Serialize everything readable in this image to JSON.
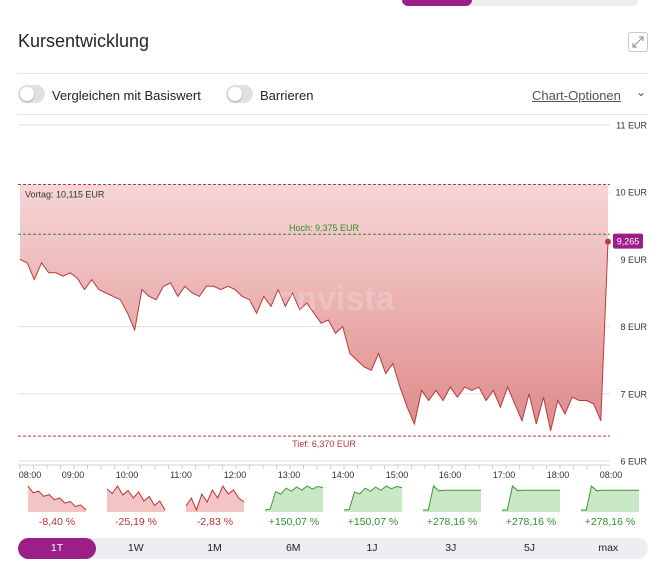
{
  "title": "Kursentwicklung",
  "toggles": [
    {
      "label": "Vergleichen mit Basiswert"
    },
    {
      "label": "Barrieren"
    }
  ],
  "chart_options_label": "Chart-Optionen",
  "watermark": "onvista",
  "chart_data": {
    "type": "area",
    "y_tick_labels": [
      "11 EUR",
      "10 EUR",
      "9 EUR",
      "8 EUR",
      "7 EUR",
      "6 EUR"
    ],
    "ylim": [
      6,
      11
    ],
    "x_tick_labels": [
      "08:00",
      "09:00",
      "10:00",
      "11:00",
      "12:00",
      "13:00",
      "14:00",
      "15:00",
      "16:00",
      "17:00",
      "18:00",
      "08:00"
    ],
    "series": [
      {
        "values": [
          9.0,
          8.95,
          8.7,
          8.95,
          8.8,
          8.8,
          8.75,
          8.8,
          8.72,
          8.55,
          8.7,
          8.55,
          8.5,
          8.45,
          8.4,
          8.2,
          7.95,
          8.55,
          8.45,
          8.4,
          8.6,
          8.65,
          8.45,
          8.6,
          8.5,
          8.45,
          8.6,
          8.6,
          8.55,
          8.6,
          8.55,
          8.45,
          8.4,
          8.2,
          8.45,
          8.3,
          8.55,
          8.3,
          8.5,
          8.25,
          8.35,
          8.2,
          8.05,
          8.1,
          7.9,
          8.0,
          7.6,
          7.5,
          7.4,
          7.35,
          7.6,
          7.3,
          7.45,
          7.1,
          6.8,
          6.55,
          7.05,
          6.9,
          7.05,
          6.9,
          7.1,
          6.95,
          7.1,
          7.05,
          7.1,
          6.9,
          7.05,
          6.8,
          7.1,
          6.85,
          6.6,
          7.0,
          6.55,
          6.95,
          6.45,
          6.9,
          6.7,
          6.95,
          6.9,
          6.9,
          6.85,
          6.6,
          9.265
        ]
      }
    ],
    "reference_lines": [
      {
        "label": "Vortag: 10,115 EUR",
        "value": 10.115,
        "color": "#b83a3a"
      },
      {
        "label": "Hoch: 9,375 EUR",
        "value": 9.375,
        "color": "#2f8f2f"
      },
      {
        "label": "Tief: 6,370 EUR",
        "value": 6.37,
        "color": "#b83a3a"
      }
    ],
    "last_value_label": "9,265",
    "colors": {
      "fill_top": "#f6d6d6",
      "fill_bottom": "#df8a8a",
      "line": "#b83a3a",
      "badge": "#9b1f86"
    },
    "grid": true
  },
  "timeframes": [
    {
      "pct": "-8,40 %",
      "trend": "down",
      "values": [
        9.8,
        9.4,
        9.5,
        9.2,
        9.3,
        9.0,
        9.1,
        8.8,
        8.9,
        8.6,
        8.7,
        8.4
      ]
    },
    {
      "pct": "-25,19 %",
      "trend": "down",
      "values": [
        9.6,
        9.3,
        9.8,
        9.2,
        9.5,
        9.0,
        9.4,
        8.8,
        9.1,
        8.5,
        8.8,
        8.2
      ]
    },
    {
      "pct": "-2,83 %",
      "trend": "down",
      "values": [
        9.0,
        9.2,
        8.9,
        9.3,
        9.1,
        9.4,
        9.2,
        9.5,
        9.3,
        9.4,
        9.2,
        9.1
      ]
    },
    {
      "pct": "+150,07 %",
      "trend": "up",
      "values": [
        5.0,
        5.2,
        8.5,
        8.0,
        9.2,
        8.6,
        9.4,
        8.8,
        9.6,
        9.0,
        9.5,
        9.3
      ]
    },
    {
      "pct": "+150,07 %",
      "trend": "up",
      "values": [
        5.0,
        5.1,
        8.4,
        8.0,
        9.1,
        8.5,
        9.3,
        8.7,
        9.5,
        9.0,
        9.4,
        9.2
      ]
    },
    {
      "pct": "+278,16 %",
      "trend": "up",
      "values": [
        5.0,
        5.0,
        9.0,
        8.2,
        8.3,
        8.3,
        8.3,
        8.3,
        8.3,
        8.3,
        8.3,
        8.3
      ]
    },
    {
      "pct": "+278,16 %",
      "trend": "up",
      "values": [
        5.0,
        5.0,
        9.0,
        8.2,
        8.3,
        8.3,
        8.3,
        8.3,
        8.3,
        8.3,
        8.3,
        8.3
      ]
    },
    {
      "pct": "+278,16 %",
      "trend": "up",
      "values": [
        5.0,
        5.0,
        9.0,
        8.2,
        8.3,
        8.3,
        8.3,
        8.3,
        8.3,
        8.3,
        8.3,
        8.3
      ]
    }
  ],
  "range_buttons": [
    {
      "label": "1T",
      "active": true
    },
    {
      "label": "1W",
      "active": false
    },
    {
      "label": "1M",
      "active": false
    },
    {
      "label": "6M",
      "active": false
    },
    {
      "label": "1J",
      "active": false
    },
    {
      "label": "3J",
      "active": false
    },
    {
      "label": "5J",
      "active": false
    },
    {
      "label": "max",
      "active": false
    }
  ],
  "colors": {
    "accent": "#9b1f86",
    "positive": "#2f8f2f",
    "negative": "#c0302f"
  }
}
